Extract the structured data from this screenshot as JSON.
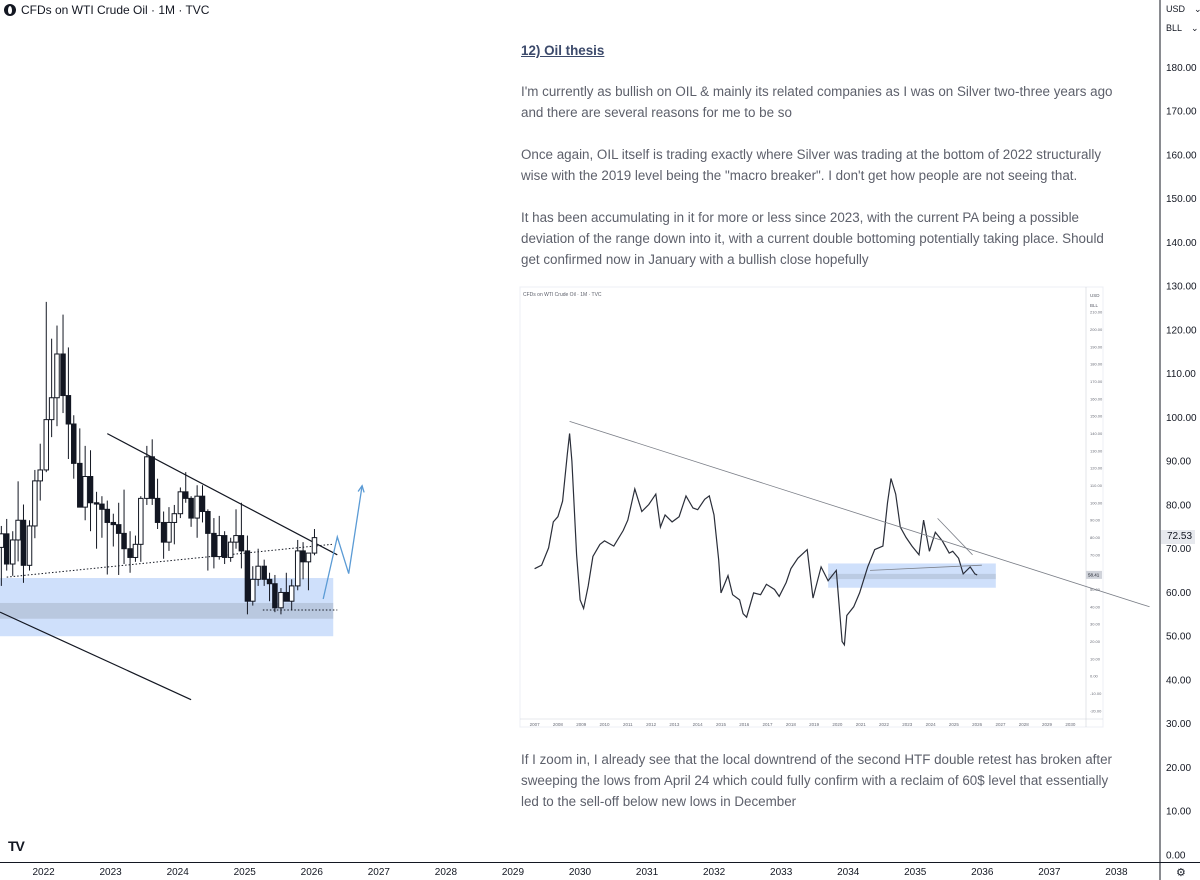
{
  "header": {
    "title": "CFDs on WTI Crude Oil · 1M · TVC"
  },
  "price_scale": {
    "currency": "USD",
    "unit": "BLL",
    "current_price": "72.53"
  },
  "watermark": "TV",
  "chart_data": [
    {
      "type": "candlestick",
      "title": "CFDs on WTI Crude Oil · 1M · TVC",
      "xlim": [
        2021.35,
        2038.65
      ],
      "ylim": [
        -1.6,
        195.4
      ],
      "x_ticks": [
        "2022",
        "2023",
        "2024",
        "2025",
        "2026",
        "2027",
        "2028",
        "2029",
        "2030",
        "2031",
        "2032",
        "2033",
        "2034",
        "2035",
        "2036",
        "2037",
        "2038"
      ],
      "y_ticks": [
        "0.00",
        "10.00",
        "20.00",
        "30.00",
        "40.00",
        "50.00",
        "60.00",
        "70.00",
        "80.00",
        "90.00",
        "100.00",
        "110.00",
        "120.00",
        "130.00",
        "140.00",
        "150.00",
        "160.00",
        "170.00",
        "180.00"
      ],
      "current_price": 72.53,
      "accent_color": "#2962ff",
      "zone_color": "#cfe0fb",
      "projection_color": "#5b9bd5",
      "candles": [
        {
          "t": 2021.37,
          "o": 70.3,
          "h": 75.2,
          "l": 61.5,
          "c": 73.4
        },
        {
          "t": 2021.45,
          "o": 73.4,
          "h": 76.8,
          "l": 65.0,
          "c": 66.5
        },
        {
          "t": 2021.54,
          "o": 66.5,
          "h": 74.0,
          "l": 63.8,
          "c": 72.0
        },
        {
          "t": 2021.62,
          "o": 72.0,
          "h": 85.4,
          "l": 67.1,
          "c": 76.5
        },
        {
          "t": 2021.7,
          "o": 76.5,
          "h": 80.1,
          "l": 62.2,
          "c": 66.2
        },
        {
          "t": 2021.79,
          "o": 66.2,
          "h": 76.5,
          "l": 65.0,
          "c": 75.2
        },
        {
          "t": 2021.87,
          "o": 75.2,
          "h": 88.0,
          "l": 72.4,
          "c": 85.5
        },
        {
          "t": 2021.95,
          "o": 85.5,
          "h": 94.0,
          "l": 81.0,
          "c": 88.0
        },
        {
          "t": 2022.04,
          "o": 88.0,
          "h": 126.4,
          "l": 87.5,
          "c": 99.5
        },
        {
          "t": 2022.12,
          "o": 99.5,
          "h": 118.0,
          "l": 95.5,
          "c": 104.5
        },
        {
          "t": 2022.2,
          "o": 104.5,
          "h": 121.0,
          "l": 98.0,
          "c": 114.5
        },
        {
          "t": 2022.29,
          "o": 114.5,
          "h": 123.5,
          "l": 101.0,
          "c": 105.0
        },
        {
          "t": 2022.37,
          "o": 105.0,
          "h": 116.0,
          "l": 90.5,
          "c": 98.5
        },
        {
          "t": 2022.45,
          "o": 98.5,
          "h": 100.5,
          "l": 86.0,
          "c": 89.5
        },
        {
          "t": 2022.54,
          "o": 89.5,
          "h": 97.5,
          "l": 81.2,
          "c": 79.5
        },
        {
          "t": 2022.62,
          "o": 79.5,
          "h": 93.5,
          "l": 76.5,
          "c": 86.5
        },
        {
          "t": 2022.7,
          "o": 86.5,
          "h": 92.5,
          "l": 74.0,
          "c": 80.5
        },
        {
          "t": 2022.79,
          "o": 80.5,
          "h": 83.0,
          "l": 70.0,
          "c": 80.2
        },
        {
          "t": 2022.87,
          "o": 80.2,
          "h": 82.0,
          "l": 72.5,
          "c": 79.0
        },
        {
          "t": 2022.95,
          "o": 79.0,
          "h": 81.0,
          "l": 64.1,
          "c": 76.0
        },
        {
          "t": 2023.04,
          "o": 76.0,
          "h": 78.0,
          "l": 70.5,
          "c": 75.5
        },
        {
          "t": 2023.12,
          "o": 75.5,
          "h": 80.5,
          "l": 64.0,
          "c": 73.5
        },
        {
          "t": 2023.2,
          "o": 73.5,
          "h": 83.5,
          "l": 66.5,
          "c": 70.0
        },
        {
          "t": 2023.29,
          "o": 70.0,
          "h": 74.0,
          "l": 64.5,
          "c": 68.0
        },
        {
          "t": 2023.37,
          "o": 68.0,
          "h": 73.0,
          "l": 67.0,
          "c": 71.0
        },
        {
          "t": 2023.45,
          "o": 71.0,
          "h": 82.0,
          "l": 67.0,
          "c": 81.5
        },
        {
          "t": 2023.54,
          "o": 81.5,
          "h": 93.5,
          "l": 80.0,
          "c": 91.0
        },
        {
          "t": 2023.62,
          "o": 91.0,
          "h": 95.0,
          "l": 80.0,
          "c": 81.5
        },
        {
          "t": 2023.7,
          "o": 81.5,
          "h": 86.0,
          "l": 74.5,
          "c": 76.0
        },
        {
          "t": 2023.79,
          "o": 76.0,
          "h": 78.5,
          "l": 67.7,
          "c": 71.5
        },
        {
          "t": 2023.87,
          "o": 71.5,
          "h": 79.5,
          "l": 69.5,
          "c": 76.0
        },
        {
          "t": 2023.95,
          "o": 76.0,
          "h": 80.0,
          "l": 71.0,
          "c": 78.0
        },
        {
          "t": 2024.04,
          "o": 78.0,
          "h": 84.0,
          "l": 77.0,
          "c": 83.0
        },
        {
          "t": 2024.12,
          "o": 83.0,
          "h": 87.5,
          "l": 80.5,
          "c": 81.5
        },
        {
          "t": 2024.2,
          "o": 81.5,
          "h": 82.0,
          "l": 75.0,
          "c": 77.0
        },
        {
          "t": 2024.29,
          "o": 77.0,
          "h": 84.5,
          "l": 72.5,
          "c": 82.0
        },
        {
          "t": 2024.37,
          "o": 82.0,
          "h": 84.5,
          "l": 76.0,
          "c": 78.5
        },
        {
          "t": 2024.45,
          "o": 78.5,
          "h": 79.0,
          "l": 65.0,
          "c": 73.5
        },
        {
          "t": 2024.54,
          "o": 73.5,
          "h": 77.0,
          "l": 65.5,
          "c": 68.2
        },
        {
          "t": 2024.62,
          "o": 68.2,
          "h": 77.5,
          "l": 67.5,
          "c": 73.0
        },
        {
          "t": 2024.7,
          "o": 73.0,
          "h": 74.0,
          "l": 66.5,
          "c": 68.0
        },
        {
          "t": 2024.79,
          "o": 68.0,
          "h": 72.5,
          "l": 67.0,
          "c": 71.5
        },
        {
          "t": 2024.87,
          "o": 71.5,
          "h": 79.0,
          "l": 70.0,
          "c": 73.0
        },
        {
          "t": 2024.95,
          "o": 73.0,
          "h": 80.5,
          "l": 65.5,
          "c": 69.5
        },
        {
          "t": 2025.04,
          "o": 69.5,
          "h": 73.0,
          "l": 55.0,
          "c": 58.0
        },
        {
          "t": 2025.12,
          "o": 58.0,
          "h": 66.0,
          "l": 57.0,
          "c": 63.0
        },
        {
          "t": 2025.2,
          "o": 63.0,
          "h": 70.0,
          "l": 61.5,
          "c": 66.0
        },
        {
          "t": 2025.29,
          "o": 66.0,
          "h": 67.5,
          "l": 61.5,
          "c": 63.0
        },
        {
          "t": 2025.37,
          "o": 63.0,
          "h": 64.5,
          "l": 58.0,
          "c": 62.0
        },
        {
          "t": 2025.45,
          "o": 62.0,
          "h": 64.0,
          "l": 55.5,
          "c": 56.5
        },
        {
          "t": 2025.54,
          "o": 56.5,
          "h": 61.0,
          "l": 55.0,
          "c": 60.0
        },
        {
          "t": 2025.62,
          "o": 60.0,
          "h": 64.5,
          "l": 58.0,
          "c": 58.0
        },
        {
          "t": 2025.7,
          "o": 58.0,
          "h": 63.0,
          "l": 56.0,
          "c": 61.5
        },
        {
          "t": 2025.79,
          "o": 61.5,
          "h": 72.0,
          "l": 60.5,
          "c": 69.5
        },
        {
          "t": 2025.87,
          "o": 69.5,
          "h": 71.5,
          "l": 63.0,
          "c": 67.0
        },
        {
          "t": 2025.95,
          "o": 67.0,
          "h": 68.0,
          "l": 60.5,
          "c": 69.0
        },
        {
          "t": 2026.04,
          "o": 69.0,
          "h": 74.5,
          "l": 68.5,
          "c": 72.53
        }
      ],
      "trend_lines": [
        {
          "name": "descending-trendline",
          "x1": 2022.95,
          "y1": 96.3,
          "x2": 2026.38,
          "y2": 68.6
        },
        {
          "name": "ascending-support-line",
          "x1": 2021.45,
          "y1": 63.5,
          "x2": 2026.3,
          "y2": 71.0
        },
        {
          "name": "lower-descending-line",
          "x1": 2021.35,
          "y1": 55.5,
          "x2": 2024.2,
          "y2": 35.5
        },
        {
          "name": "low-level-line",
          "x1": 2025.27,
          "y1": 56.0,
          "x2": 2026.38,
          "y2": 56.0
        }
      ],
      "zones": [
        {
          "name": "support-zone",
          "x1": 2021.35,
          "x2": 2026.32,
          "y1": 50.0,
          "y2": 63.3
        },
        {
          "name": "inner-support-band",
          "x1": 2021.35,
          "x2": 2026.32,
          "y1": 54.0,
          "y2": 57.6
        }
      ],
      "projection": [
        [
          2026.17,
          58.5
        ],
        [
          2026.38,
          72.7
        ],
        [
          2026.55,
          64.3
        ],
        [
          2026.75,
          84.4
        ]
      ]
    },
    {
      "type": "candlestick",
      "title": "CFDs on WTI Crude Oil · 1M · TVC",
      "x_ticks": [
        "2007",
        "2008",
        "2009",
        "2010",
        "2011",
        "2012",
        "2013",
        "2014",
        "2015",
        "2016",
        "2017",
        "2018",
        "2019",
        "2020",
        "2021",
        "2022",
        "2023",
        "2024",
        "2025",
        "2026",
        "2027",
        "2028",
        "2029",
        "2030"
      ],
      "y_ticks": [
        "-20.00",
        "-10.00",
        "0.00",
        "10.00",
        "20.00",
        "30.00",
        "40.00",
        "50.00",
        "60.00",
        "70.00",
        "80.00",
        "90.00",
        "100.00",
        "110.00",
        "120.00",
        "130.00",
        "140.00",
        "150.00",
        "160.00",
        "170.00",
        "180.00",
        "190.00",
        "200.00",
        "210.00"
      ],
      "price_currency": "USD",
      "price_unit": "BLL",
      "current_price": "58.41",
      "xlim": [
        2006.5,
        2030.5
      ],
      "ylim": [
        -23,
        217
      ],
      "series": [
        {
          "name": "close",
          "points": [
            [
              2007.0,
              62
            ],
            [
              2007.3,
              64
            ],
            [
              2007.6,
              74
            ],
            [
              2007.8,
              89
            ],
            [
              2008.0,
              92
            ],
            [
              2008.2,
              101
            ],
            [
              2008.4,
              128
            ],
            [
              2008.5,
              140
            ],
            [
              2008.6,
              124
            ],
            [
              2008.8,
              70
            ],
            [
              2008.95,
              44
            ],
            [
              2009.1,
              39
            ],
            [
              2009.3,
              52
            ],
            [
              2009.5,
              69
            ],
            [
              2009.8,
              76
            ],
            [
              2010.0,
              78
            ],
            [
              2010.4,
              75
            ],
            [
              2010.8,
              84
            ],
            [
              2011.0,
              90
            ],
            [
              2011.3,
              108
            ],
            [
              2011.6,
              95
            ],
            [
              2011.9,
              99
            ],
            [
              2012.2,
              105
            ],
            [
              2012.4,
              86
            ],
            [
              2012.6,
              93
            ],
            [
              2012.9,
              89
            ],
            [
              2013.2,
              92
            ],
            [
              2013.5,
              104
            ],
            [
              2013.8,
              97
            ],
            [
              2014.0,
              96
            ],
            [
              2014.3,
              102
            ],
            [
              2014.5,
              104
            ],
            [
              2014.7,
              93
            ],
            [
              2014.9,
              67
            ],
            [
              2015.0,
              48
            ],
            [
              2015.3,
              58
            ],
            [
              2015.5,
              47
            ],
            [
              2015.8,
              44
            ],
            [
              2015.95,
              36
            ],
            [
              2016.1,
              34
            ],
            [
              2016.4,
              48
            ],
            [
              2016.7,
              47
            ],
            [
              2016.95,
              53
            ],
            [
              2017.3,
              50
            ],
            [
              2017.5,
              46
            ],
            [
              2017.8,
              54
            ],
            [
              2018.0,
              62
            ],
            [
              2018.3,
              68
            ],
            [
              2018.7,
              73
            ],
            [
              2018.95,
              45
            ],
            [
              2019.3,
              63
            ],
            [
              2019.6,
              55
            ],
            [
              2019.95,
              61
            ],
            [
              2020.2,
              20
            ],
            [
              2020.3,
              18
            ],
            [
              2020.4,
              35
            ],
            [
              2020.7,
              40
            ],
            [
              2020.95,
              48
            ],
            [
              2021.3,
              63
            ],
            [
              2021.6,
              73
            ],
            [
              2021.95,
              75
            ],
            [
              2022.15,
              100
            ],
            [
              2022.3,
              114
            ],
            [
              2022.5,
              105
            ],
            [
              2022.7,
              86
            ],
            [
              2022.95,
              80
            ],
            [
              2023.2,
              75
            ],
            [
              2023.5,
              70
            ],
            [
              2023.7,
              90
            ],
            [
              2023.95,
              72
            ],
            [
              2024.2,
              83
            ],
            [
              2024.5,
              78
            ],
            [
              2024.8,
              71
            ],
            [
              2024.95,
              72
            ],
            [
              2025.2,
              68
            ],
            [
              2025.4,
              59
            ],
            [
              2025.7,
              63
            ],
            [
              2025.9,
              59
            ],
            [
              2026.0,
              58.4
            ]
          ]
        }
      ],
      "trend_lines": [
        {
          "x1": 2008.5,
          "y1": 147,
          "x2": 2033.4,
          "y2": 40
        },
        {
          "x1": 2024.3,
          "y1": 91,
          "x2": 2025.8,
          "y2": 70
        },
        {
          "x1": 2021.4,
          "y1": 61,
          "x2": 2026.2,
          "y2": 64
        }
      ],
      "zones": [
        {
          "x1": 2019.6,
          "x2": 2026.8,
          "y1": 51,
          "y2": 65
        },
        {
          "x1": 2019.6,
          "x2": 2026.8,
          "y1": 56,
          "y2": 59
        }
      ]
    }
  ],
  "thesis": {
    "heading": "12) Oil thesis",
    "p1": "I'm currently as bullish on OIL & mainly its related companies as I was on Silver two-three years ago and there are several reasons for me to be so",
    "p2": "Once again, OIL itself is trading exactly where Silver was trading at the bottom of 2022 structurally wise with the 2019 level being the \"macro breaker\". I don't get how people are not seeing that.",
    "p3": "It has been accumulating in it for more or less since 2023, with the current PA being a possible deviation of the range down into it, with a current double bottoming potentially taking place. Should get confirmed now in January with a bullish close hopefully",
    "p4": "If I zoom in, I already see that the local downtrend of the second HTF double retest has broken after sweeping the lows from April 24 which could fully confirm with a reclaim of 60$ level that essentially led to the sell-off below new lows in December"
  }
}
